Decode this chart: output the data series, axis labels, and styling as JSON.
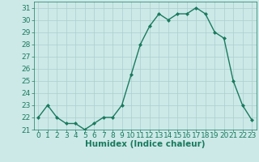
{
  "x": [
    0,
    1,
    2,
    3,
    4,
    5,
    6,
    7,
    8,
    9,
    10,
    11,
    12,
    13,
    14,
    15,
    16,
    17,
    18,
    19,
    20,
    21,
    22,
    23
  ],
  "y": [
    22.0,
    23.0,
    22.0,
    21.5,
    21.5,
    21.0,
    21.5,
    22.0,
    22.0,
    23.0,
    25.5,
    28.0,
    29.5,
    30.5,
    30.0,
    30.5,
    30.5,
    31.0,
    30.5,
    29.0,
    28.5,
    25.0,
    23.0,
    21.8
  ],
  "line_color": "#1a7a5e",
  "marker": "D",
  "marker_size": 2.0,
  "bg_color": "#cce9e8",
  "grid_color": "#aacfcc",
  "xlabel": "Humidex (Indice chaleur)",
  "ylim": [
    21,
    31.5
  ],
  "yticks": [
    21,
    22,
    23,
    24,
    25,
    26,
    27,
    28,
    29,
    30,
    31
  ],
  "xticks": [
    0,
    1,
    2,
    3,
    4,
    5,
    6,
    7,
    8,
    9,
    10,
    11,
    12,
    13,
    14,
    15,
    16,
    17,
    18,
    19,
    20,
    21,
    22,
    23
  ],
  "xlim": [
    -0.5,
    23.5
  ],
  "tick_label_color": "#1a7a5e",
  "xlabel_color": "#1a7a5e",
  "xlabel_fontsize": 7.5,
  "tick_fontsize": 6.5,
  "linewidth": 1.0
}
